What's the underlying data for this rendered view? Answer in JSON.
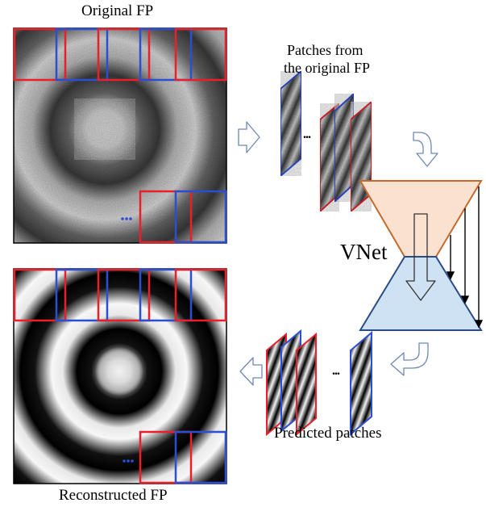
{
  "labels": {
    "original": "Original FP",
    "patches_line1": "Patches from",
    "patches_line2": "the original FP",
    "vnet": "VNet",
    "predicted": "Predicted patches",
    "reconstructed": "Reconstructed FP",
    "ellipsis": "..."
  },
  "colors": {
    "red": "#e8202a",
    "blue": "#2a4fd4",
    "encoder_fill": "#fbe1cf",
    "encoder_stroke": "#c46a2c",
    "decoder_fill": "#cfe2f3",
    "decoder_stroke": "#2a4d8a",
    "arrow_stroke": "#6e88b8"
  },
  "icons": [
    "right-arrow-icon",
    "curved-arrow-down-icon",
    "curved-arrow-left-icon",
    "left-arrow-icon",
    "down-arrow-icon"
  ]
}
